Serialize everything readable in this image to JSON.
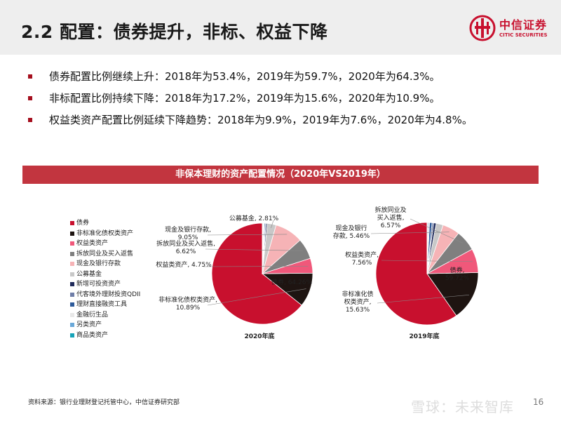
{
  "header": {
    "title": "2.2 配置：债券提升，非标、权益下降",
    "logo_name": "中信证券",
    "logo_sub": "CITIC SECURITIES"
  },
  "bullets": [
    "债券配置比例继续上升：2018年为53.4%，2019年为59.7%，2020年为64.3%。",
    "非标配置比例持续下降：2018年为17.2%，2019年为15.6%，2020年为10.9%。",
    "权益类资产配置比例延续下降趋势：2018年为9.9%，2019年为7.6%，2020年为4.8%。"
  ],
  "banner": "非保本理财的资产配置情况（2020年VS2019年）",
  "legend": [
    {
      "name": "债券",
      "color": "#c8102e"
    },
    {
      "name": "非标准化债权类资产",
      "color": "#1e1411"
    },
    {
      "name": "权益类资产",
      "color": "#f0587a"
    },
    {
      "name": "拆放同业及买入返售",
      "color": "#7f7f7f"
    },
    {
      "name": "现金及银行存款",
      "color": "#f6b3b6"
    },
    {
      "name": "公募基金",
      "color": "#c8c8c8"
    },
    {
      "name": "新增可投资资产",
      "color": "#1f2a5a"
    },
    {
      "name": "代客境外理财投资QDII",
      "color": "#6f7ea8"
    },
    {
      "name": "理财直接融资工具",
      "color": "#2d5a9a"
    },
    {
      "name": "金融衍生品",
      "color": "#e8e8e8"
    },
    {
      "name": "另类资产",
      "color": "#6aa8d8"
    },
    {
      "name": "商品类资产",
      "color": "#17a3b8"
    }
  ],
  "chart_data": [
    {
      "type": "pie",
      "title": "2020年底",
      "slices": [
        {
          "name": "债券",
          "value": 64.26,
          "label": "债券, 64.26%",
          "color": "#c8102e"
        },
        {
          "name": "非标准化债权类资产",
          "value": 10.89,
          "label": "非标准化债权类资产,\n10.89%",
          "color": "#1e1411"
        },
        {
          "name": "权益类资产",
          "value": 4.75,
          "label": "权益类资产, 4.75%",
          "color": "#f0587a"
        },
        {
          "name": "拆放同业及买入返售",
          "value": 6.62,
          "label": "拆放同业及买入返售,\n6.62%",
          "color": "#7f7f7f"
        },
        {
          "name": "现金及银行存款",
          "value": 9.05,
          "label": "现金及银行存款,\n9.05%",
          "color": "#f6b3b6"
        },
        {
          "name": "公募基金",
          "value": 2.81,
          "label": "公募基金, 2.81%",
          "color": "#c8c8c8"
        },
        {
          "name": "新增可投资资产",
          "value": 0.4,
          "color": "#1f2a5a"
        },
        {
          "name": "代客境外理财投资QDII",
          "value": 0.3,
          "color": "#6f7ea8"
        },
        {
          "name": "理财直接融资工具",
          "value": 0.3,
          "color": "#2d5a9a"
        },
        {
          "name": "金融衍生品",
          "value": 0.2,
          "color": "#e8e8e8"
        },
        {
          "name": "另类资产",
          "value": 0.2,
          "color": "#6aa8d8"
        },
        {
          "name": "商品类资产",
          "value": 0.2,
          "color": "#17a3b8"
        }
      ]
    },
    {
      "type": "pie",
      "title": "2019年底",
      "slices": [
        {
          "name": "债券",
          "value": 59.72,
          "label": "债券,\n59.72%",
          "color": "#c8102e"
        },
        {
          "name": "非标准化债权类资产",
          "value": 15.63,
          "label": "非标准化债\n权类资产,\n15.63%",
          "color": "#1e1411"
        },
        {
          "name": "权益类资产",
          "value": 7.56,
          "label": "权益类资产,\n7.56%",
          "color": "#f0587a"
        },
        {
          "name": "拆放同业及买入返售",
          "value": 6.57,
          "label": "拆放同业及\n买入返售,\n6.57%",
          "color": "#7f7f7f"
        },
        {
          "name": "现金及银行存款",
          "value": 5.46,
          "label": "现金及银行\n存款, 5.46%",
          "color": "#f6b3b6"
        },
        {
          "name": "公募基金",
          "value": 2.2,
          "color": "#c8c8c8"
        },
        {
          "name": "新增可投资资产",
          "value": 0.8,
          "color": "#1f2a5a"
        },
        {
          "name": "代客境外理财投资QDII",
          "value": 0.5,
          "color": "#6f7ea8"
        },
        {
          "name": "理财直接融资工具",
          "value": 0.8,
          "color": "#2d5a9a"
        },
        {
          "name": "金融衍生品",
          "value": 0.3,
          "color": "#e8e8e8"
        },
        {
          "name": "另类资产",
          "value": 0.3,
          "color": "#6aa8d8"
        },
        {
          "name": "商品类资产",
          "value": 0.16,
          "color": "#17a3b8"
        }
      ]
    }
  ],
  "source": "资料来源：银行业理财登记托管中心，中信证券研究部",
  "watermark": "雪球：未来智库",
  "page_number": "16"
}
